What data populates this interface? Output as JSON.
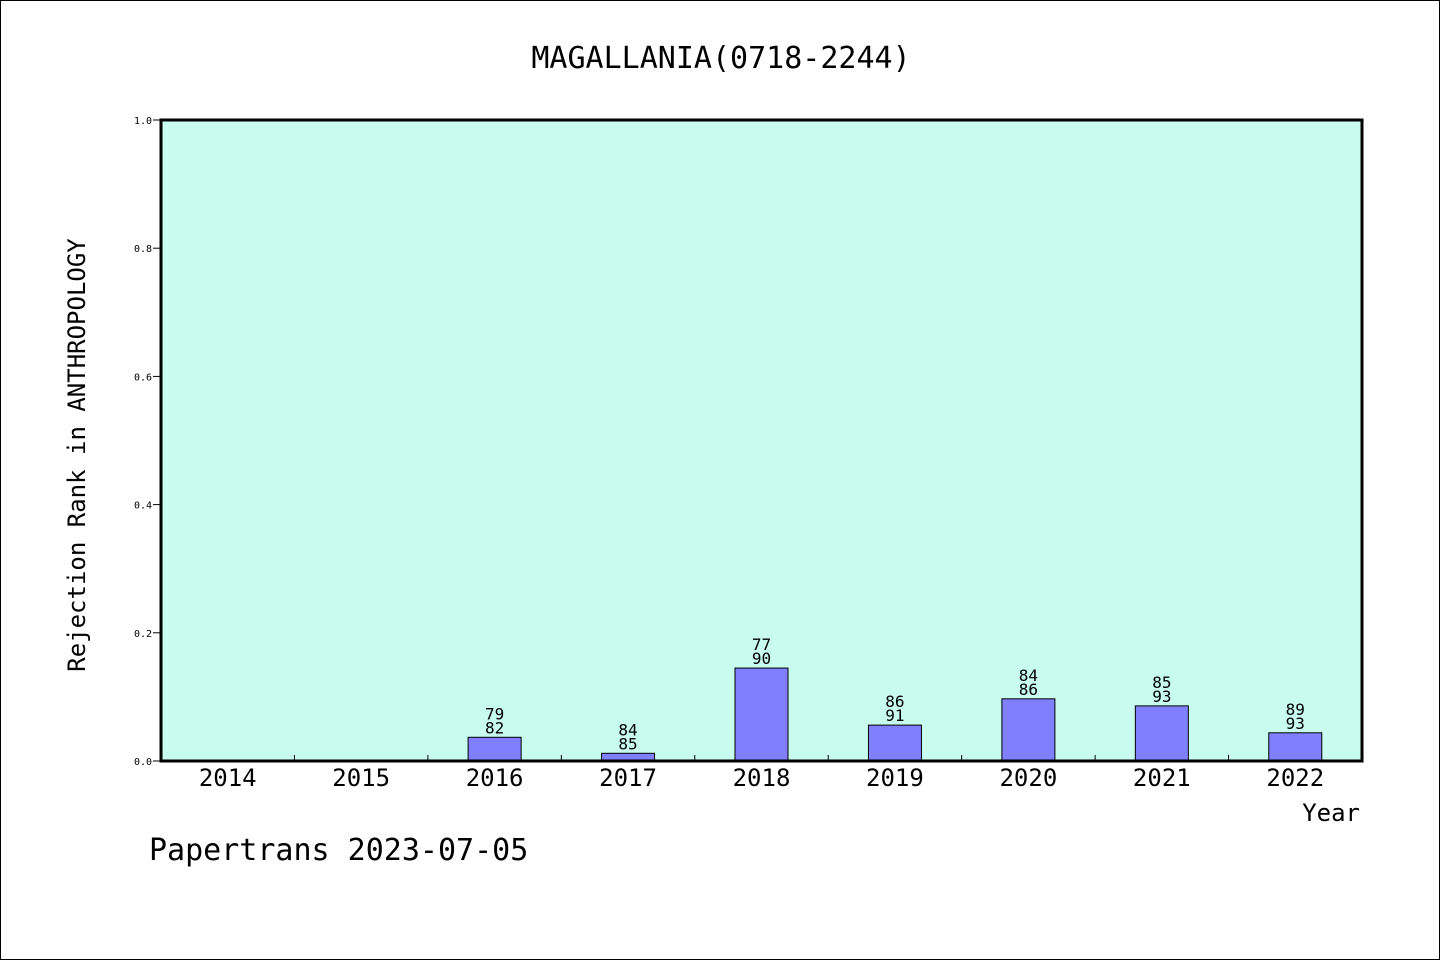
{
  "chart_data": {
    "type": "bar",
    "title": "MAGALLANIA(0718-2244)",
    "xlabel": "Year",
    "ylabel": "Rejection Rank in ANTHROPOLOGY",
    "ylim": [
      0,
      1.0
    ],
    "yticks": [
      "0.0",
      "0.2",
      "0.4",
      "0.6",
      "0.8",
      "1.0"
    ],
    "categories": [
      "2014",
      "2015",
      "2016",
      "2017",
      "2018",
      "2019",
      "2020",
      "2021",
      "2022"
    ],
    "values": [
      0,
      0,
      0.037,
      0.012,
      0.145,
      0.056,
      0.097,
      0.086,
      0.044
    ],
    "bar_labels": [
      null,
      null,
      [
        "79",
        "82"
      ],
      [
        "84",
        "85"
      ],
      [
        "77",
        "90"
      ],
      [
        "86",
        "91"
      ],
      [
        "84",
        "86"
      ],
      [
        "85",
        "93"
      ],
      [
        "89",
        "93"
      ]
    ],
    "grid": false,
    "colors": {
      "plot_background": "#c8fcee",
      "bar_fill": "#8080ff",
      "bar_stroke": "#000000"
    }
  },
  "footer": {
    "text": "Papertrans 2023-07-05"
  }
}
